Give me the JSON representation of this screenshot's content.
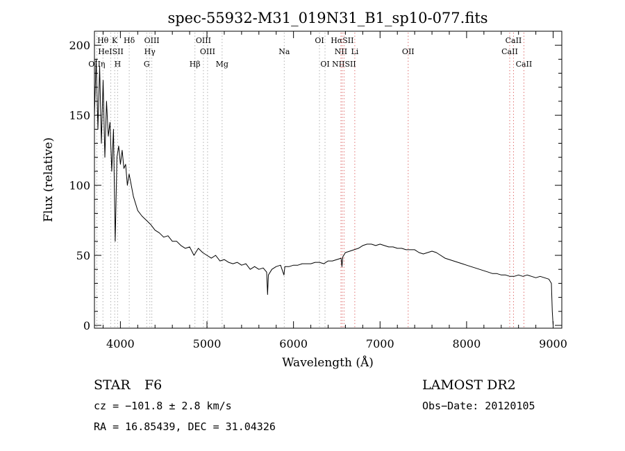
{
  "chart_data": {
    "type": "line",
    "title": "spec-55932-M31_019N31_B1_sp10-077.fits",
    "xlabel": "Wavelength (Å)",
    "ylabel": "Flux (relative)",
    "xlim": [
      3700,
      9100
    ],
    "ylim": [
      -2,
      210
    ],
    "xticks": [
      4000,
      5000,
      6000,
      7000,
      8000,
      9000
    ],
    "yticks": [
      0,
      50,
      100,
      150,
      200
    ],
    "grid": false,
    "series": [
      {
        "x": [
          3700,
          3720,
          3740,
          3760,
          3780,
          3800,
          3820,
          3840,
          3860,
          3880,
          3900,
          3920,
          3940,
          3960,
          3980,
          4000,
          4020,
          4040,
          4060,
          4080,
          4100,
          4120,
          4150,
          4200,
          4250,
          4300,
          4350,
          4400,
          4450,
          4500,
          4550,
          4600,
          4650,
          4700,
          4750,
          4800,
          4850,
          4900,
          4950,
          5000,
          5050,
          5100,
          5150,
          5200,
          5250,
          5300,
          5350,
          5400,
          5450,
          5500,
          5550,
          5600,
          5650,
          5690,
          5700,
          5710,
          5750,
          5800,
          5850,
          5890,
          5900,
          5950,
          6000,
          6050,
          6100,
          6150,
          6200,
          6250,
          6300,
          6350,
          6400,
          6450,
          6500,
          6550,
          6560,
          6570,
          6600,
          6650,
          6700,
          6750,
          6800,
          6850,
          6900,
          6950,
          7000,
          7050,
          7100,
          7150,
          7200,
          7250,
          7300,
          7350,
          7400,
          7450,
          7500,
          7550,
          7600,
          7650,
          7700,
          7750,
          7800,
          7850,
          7900,
          7950,
          8000,
          8050,
          8100,
          8150,
          8200,
          8250,
          8300,
          8350,
          8400,
          8450,
          8500,
          8550,
          8600,
          8650,
          8700,
          8750,
          8800,
          8850,
          8900,
          8950,
          8980,
          8990,
          9000
        ],
        "y": [
          150,
          190,
          140,
          185,
          130,
          175,
          120,
          160,
          135,
          145,
          110,
          140,
          60,
          120,
          128,
          115,
          125,
          112,
          115,
          100,
          108,
          102,
          92,
          82,
          78,
          75,
          72,
          68,
          66,
          63,
          64,
          60,
          60,
          57,
          55,
          56,
          50,
          55,
          52,
          50,
          48,
          50,
          46,
          47,
          45,
          44,
          45,
          43,
          44,
          40,
          42,
          40,
          41,
          38,
          22,
          36,
          40,
          42,
          43,
          36,
          42,
          42,
          43,
          43,
          44,
          44,
          44,
          45,
          45,
          44,
          46,
          46,
          47,
          48,
          42,
          49,
          52,
          53,
          54,
          55,
          57,
          58,
          58,
          57,
          58,
          57,
          56,
          56,
          55,
          55,
          54,
          54,
          54,
          52,
          51,
          52,
          53,
          52,
          50,
          48,
          47,
          46,
          45,
          44,
          43,
          42,
          41,
          40,
          39,
          38,
          37,
          37,
          36,
          36,
          35,
          35,
          36,
          35,
          36,
          35,
          34,
          35,
          34,
          33,
          30,
          10,
          0
        ]
      }
    ],
    "lines": [
      {
        "label": "Hθ",
        "x": 3798,
        "row": 1,
        "color": "#b0b0b0"
      },
      {
        "label": "K",
        "x": 3934,
        "row": 1,
        "color": "#b0b0b0"
      },
      {
        "label": "Hδ",
        "x": 4102,
        "row": 1,
        "color": "#b0b0b0"
      },
      {
        "label": "OIII",
        "x": 4363,
        "row": 1,
        "color": "#b0b0b0"
      },
      {
        "label": "OIII",
        "x": 4959,
        "row": 1,
        "color": "#b0b0b0"
      },
      {
        "label": "OI",
        "x": 6300,
        "row": 1,
        "color": "#b0b0b0"
      },
      {
        "label": "HαSII",
        "x": 6563,
        "row": 1,
        "color": "#e07070"
      },
      {
        "label": "CaII",
        "x": 8542,
        "row": 1,
        "color": "#e07070"
      },
      {
        "label": "HeISII",
        "x": 3889,
        "row": 2,
        "color": "#b0b0b0"
      },
      {
        "label": "Hγ",
        "x": 4340,
        "row": 2,
        "color": "#b0b0b0"
      },
      {
        "label": "OIII",
        "x": 5007,
        "row": 2,
        "color": "#b0b0b0"
      },
      {
        "label": "Na",
        "x": 5893,
        "row": 2,
        "color": "#b0b0b0"
      },
      {
        "label": "NII",
        "x": 6548,
        "row": 2,
        "color": "#e07070"
      },
      {
        "label": "Li",
        "x": 6708,
        "row": 2,
        "color": "#e07070"
      },
      {
        "label": "OII",
        "x": 7325,
        "row": 2,
        "color": "#e07070"
      },
      {
        "label": "CaII",
        "x": 8498,
        "row": 2,
        "color": "#e07070"
      },
      {
        "label": "OIIη",
        "x": 3727,
        "row": 3,
        "color": "#b0b0b0"
      },
      {
        "label": "H",
        "x": 3968,
        "row": 3,
        "color": "#b0b0b0"
      },
      {
        "label": "G",
        "x": 4304,
        "row": 3,
        "color": "#b0b0b0"
      },
      {
        "label": "Hβ",
        "x": 4861,
        "row": 3,
        "color": "#b0b0b0"
      },
      {
        "label": "Mg",
        "x": 5175,
        "row": 3,
        "color": "#b0b0b0"
      },
      {
        "label": "OI",
        "x": 6364,
        "row": 3,
        "color": "#b0b0b0"
      },
      {
        "label": "NIISII",
        "x": 6584,
        "row": 3,
        "color": "#e07070"
      },
      {
        "label": "CaII",
        "x": 8662,
        "row": 3,
        "color": "#e07070"
      }
    ]
  },
  "info": {
    "class": "STAR",
    "subclass": "F6",
    "survey": "LAMOST DR2",
    "cz": "cz = −101.8 ± 2.8 km/s",
    "obs_date": "Obs−Date: 20120105",
    "coords": "RA =  16.85439, DEC =  31.04326"
  }
}
